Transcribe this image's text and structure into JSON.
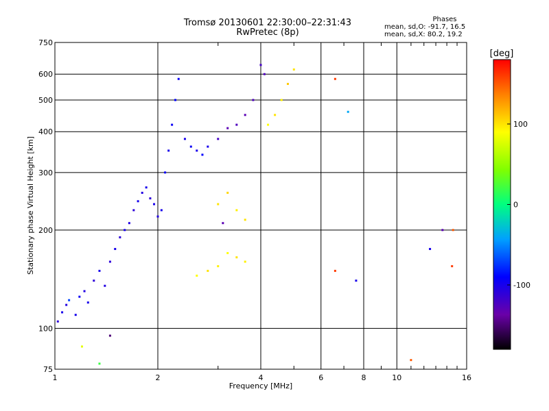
{
  "header": {
    "title_line1": "Tromsø 20130601 22:30:00–22:31:43",
    "title_line2": "RwPretec (8p)",
    "phase_label": "Phases",
    "phase_o": "mean, sd,O: -91.7, 16.5",
    "phase_x": "mean, sd,X:  80.2, 19.2"
  },
  "colorbar": {
    "unit_label": "[deg]",
    "ticks": [
      {
        "value": 100,
        "label": "100"
      },
      {
        "value": 0,
        "label": "0"
      },
      {
        "value": -100,
        "label": "-100"
      }
    ],
    "range": [
      -180,
      180
    ]
  },
  "chart_data": {
    "type": "scatter",
    "title": "Tromsø 20130601 22:30:00–22:31:43",
    "subtitle": "RwPretec (8p)",
    "xlabel": "Frequency [MHz]",
    "ylabel": "Stationary phase Virtual Height [km]",
    "x_scale": "log",
    "y_scale": "log",
    "xlim": [
      1,
      16
    ],
    "ylim": [
      75,
      750
    ],
    "grid": true,
    "x_ticks": [
      {
        "value": 1,
        "label": "1"
      },
      {
        "value": 2,
        "label": "2"
      },
      {
        "value": 4,
        "label": "4"
      },
      {
        "value": 6,
        "label": "6"
      },
      {
        "value": 8,
        "label": "8"
      },
      {
        "value": 10,
        "label": "10"
      },
      {
        "value": 16,
        "label": "16"
      }
    ],
    "y_ticks": [
      {
        "value": 75,
        "label": "75"
      },
      {
        "value": 100,
        "label": "100"
      },
      {
        "value": 200,
        "label": "200"
      },
      {
        "value": 300,
        "label": "300"
      },
      {
        "value": 400,
        "label": "400"
      },
      {
        "value": 500,
        "label": "500"
      },
      {
        "value": 600,
        "label": "600"
      },
      {
        "value": 750,
        "label": "750"
      }
    ],
    "color_var": "Phase [deg]",
    "points": [
      [
        1.02,
        105,
        -110
      ],
      [
        1.05,
        112,
        -100
      ],
      [
        1.08,
        118,
        -105
      ],
      [
        1.1,
        122,
        -70
      ],
      [
        1.15,
        110,
        -100
      ],
      [
        1.18,
        125,
        -95
      ],
      [
        1.22,
        130,
        -105
      ],
      [
        1.25,
        120,
        -100
      ],
      [
        1.3,
        140,
        -110
      ],
      [
        1.35,
        150,
        -100
      ],
      [
        1.4,
        135,
        -105
      ],
      [
        1.45,
        160,
        -110
      ],
      [
        1.5,
        175,
        -100
      ],
      [
        1.55,
        190,
        -110
      ],
      [
        1.6,
        200,
        -100
      ],
      [
        1.65,
        210,
        -105
      ],
      [
        1.7,
        230,
        -110
      ],
      [
        1.75,
        245,
        -100
      ],
      [
        1.8,
        260,
        -105
      ],
      [
        1.85,
        270,
        -100
      ],
      [
        1.9,
        250,
        -110
      ],
      [
        1.95,
        240,
        -100
      ],
      [
        2.0,
        220,
        -105
      ],
      [
        2.05,
        230,
        -100
      ],
      [
        2.1,
        300,
        -95
      ],
      [
        2.15,
        350,
        -100
      ],
      [
        2.2,
        420,
        -95
      ],
      [
        2.25,
        500,
        -90
      ],
      [
        2.3,
        580,
        -95
      ],
      [
        2.4,
        380,
        -100
      ],
      [
        2.5,
        360,
        -95
      ],
      [
        2.6,
        350,
        -100
      ],
      [
        2.7,
        340,
        -90
      ],
      [
        2.8,
        360,
        -100
      ],
      [
        3.0,
        380,
        -120
      ],
      [
        3.2,
        410,
        -130
      ],
      [
        3.4,
        420,
        -125
      ],
      [
        3.6,
        450,
        -130
      ],
      [
        3.8,
        500,
        -125
      ],
      [
        4.0,
        640,
        -120
      ],
      [
        4.1,
        600,
        -125
      ],
      [
        4.2,
        420,
        90
      ],
      [
        4.4,
        450,
        100
      ],
      [
        4.6,
        500,
        95
      ],
      [
        4.8,
        560,
        110
      ],
      [
        5.0,
        620,
        100
      ],
      [
        2.6,
        145,
        90
      ],
      [
        2.8,
        150,
        100
      ],
      [
        3.0,
        155,
        95
      ],
      [
        3.2,
        170,
        90
      ],
      [
        3.4,
        165,
        100
      ],
      [
        3.6,
        160,
        95
      ],
      [
        3.0,
        240,
        100
      ],
      [
        3.2,
        260,
        105
      ],
      [
        3.4,
        230,
        95
      ],
      [
        3.6,
        215,
        100
      ],
      [
        3.1,
        210,
        -130
      ],
      [
        1.45,
        95,
        -150
      ],
      [
        1.2,
        88,
        80
      ],
      [
        1.35,
        78,
        20
      ],
      [
        6.6,
        580,
        160
      ],
      [
        6.6,
        150,
        160
      ],
      [
        7.2,
        460,
        -40
      ],
      [
        7.6,
        140,
        -100
      ],
      [
        11.0,
        80,
        150
      ],
      [
        12.5,
        175,
        -100
      ],
      [
        13.6,
        200,
        -130
      ],
      [
        14.6,
        200,
        150
      ],
      [
        14.5,
        155,
        160
      ]
    ]
  }
}
